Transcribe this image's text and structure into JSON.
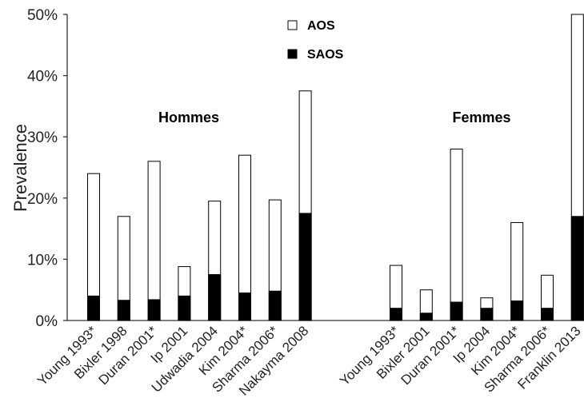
{
  "chart_data": {
    "type": "bar",
    "stacked": true,
    "title": "",
    "xlabel": "",
    "ylabel": "Prevalence",
    "ylim": [
      0,
      50
    ],
    "yticks": [
      "0%",
      "10%",
      "20%",
      "30%",
      "40%",
      "50%"
    ],
    "grid": false,
    "legend": {
      "placement": "top-center",
      "entries": [
        {
          "name": "AOS",
          "color": "#ffffff"
        },
        {
          "name": "SAOS",
          "color": "#000000"
        }
      ]
    },
    "groups": [
      {
        "label": "Hommes",
        "categories": [
          "Young 1993*",
          "Bixler 1998",
          "Duran 2001*",
          "Ip 2001",
          "Udwadia 2004",
          "Kim 2004*",
          "Sharma 2006*",
          "Nakayma 2008"
        ],
        "AOS": [
          24,
          17,
          26,
          8.8,
          19.5,
          27,
          19.7,
          37.5
        ],
        "SAOS": [
          4,
          3.3,
          3.4,
          4,
          7.5,
          4.5,
          4.8,
          17.5
        ]
      },
      {
        "label": "Femmes",
        "categories": [
          "Young 1993*",
          "Bixler 2001",
          "Duran 2001*",
          "Ip 2004",
          "Kim 2004*",
          "Sharma 2006*",
          "Franklin 2013"
        ],
        "AOS": [
          9,
          5,
          28,
          3.7,
          16,
          7.4,
          50
        ],
        "SAOS": [
          2,
          1.2,
          3,
          2,
          3.2,
          2,
          17
        ]
      }
    ]
  }
}
